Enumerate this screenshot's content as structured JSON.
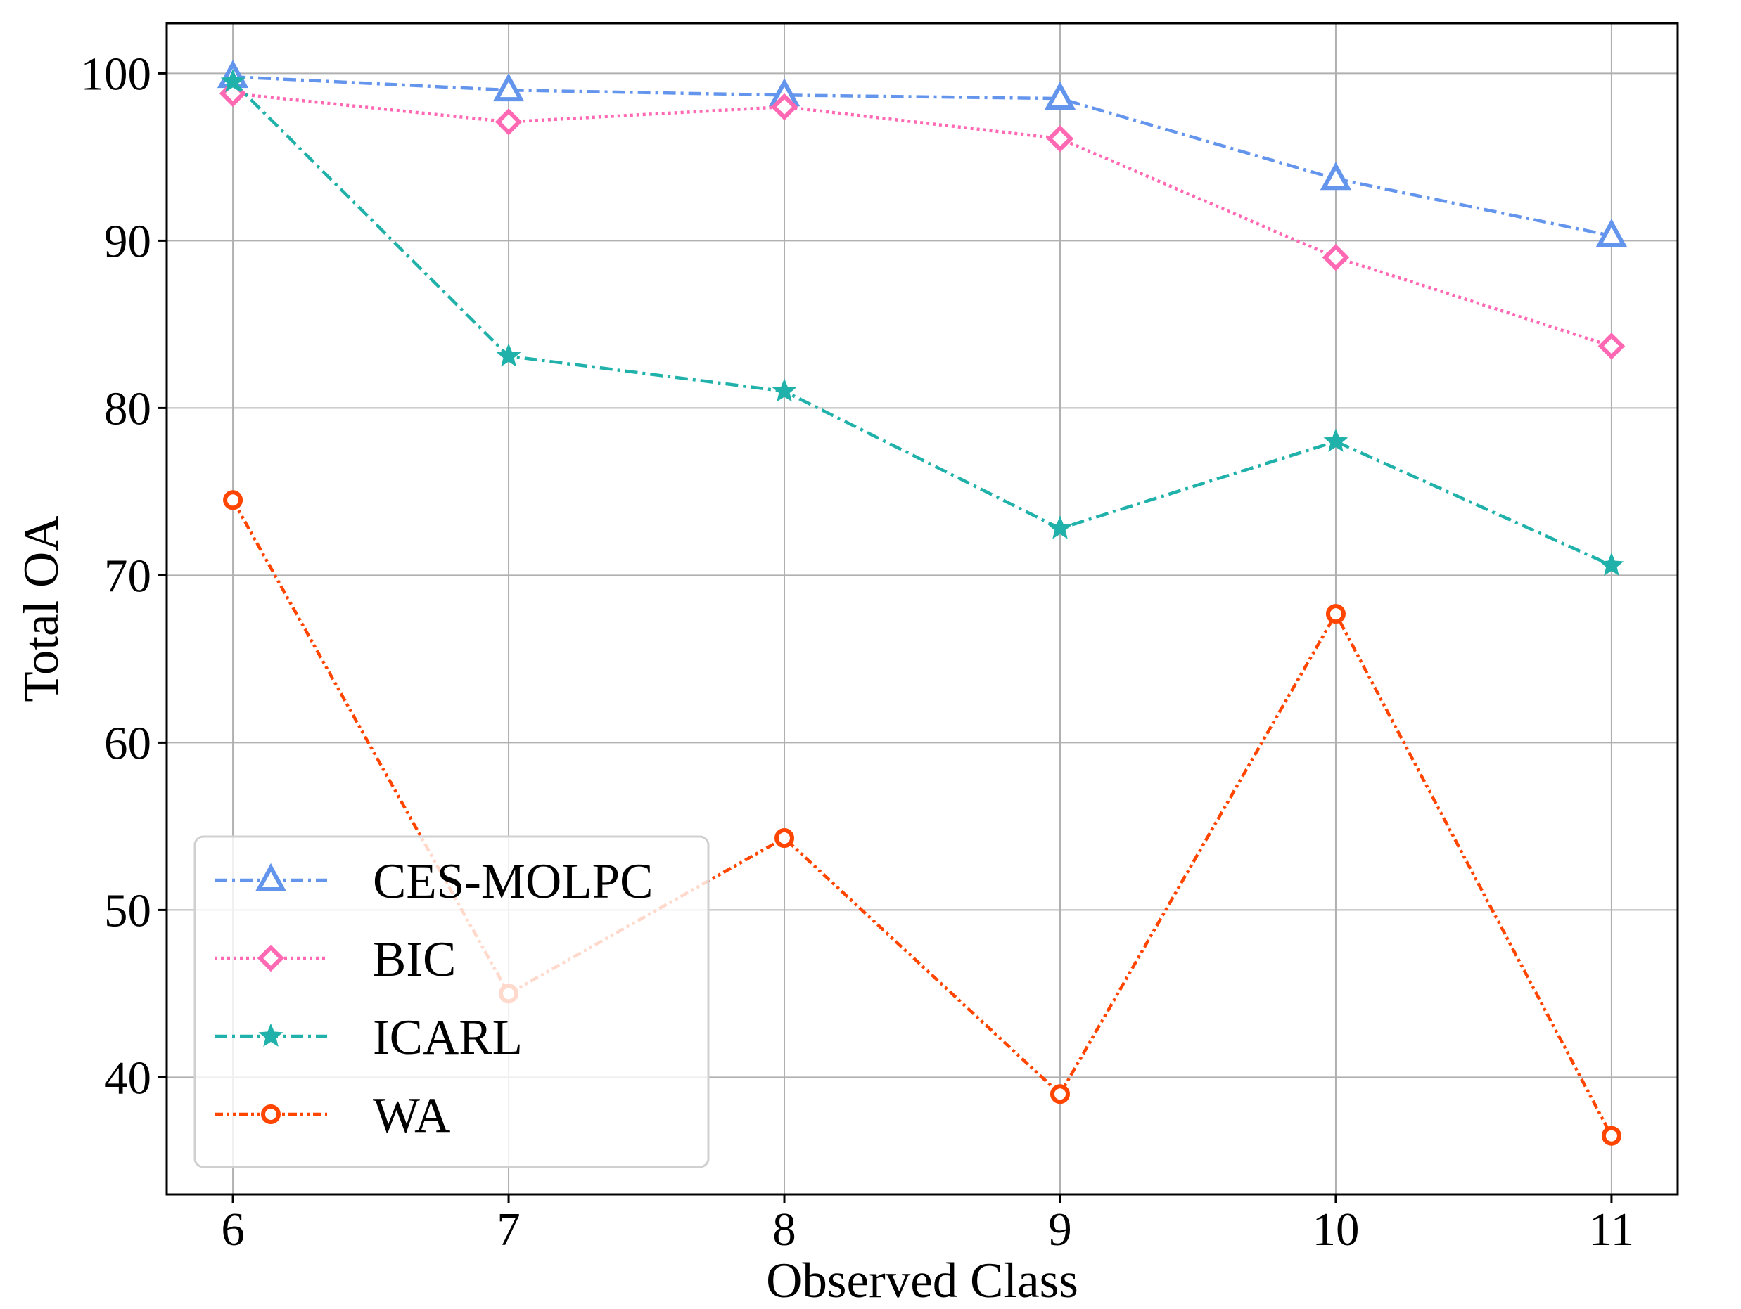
{
  "chart_data": {
    "type": "line",
    "title": "",
    "xlabel": "Observed Class",
    "ylabel": "Total OA",
    "x": [
      6,
      7,
      8,
      9,
      10,
      11
    ],
    "x_tick_labels": [
      "6",
      "7",
      "8",
      "9",
      "10",
      "11"
    ],
    "xlim": [
      5.76,
      11.24
    ],
    "ylim": [
      33,
      103
    ],
    "y_ticks": [
      40,
      50,
      60,
      70,
      80,
      90,
      100
    ],
    "y_tick_labels": [
      "40",
      "50",
      "60",
      "70",
      "80",
      "90",
      "100"
    ],
    "grid": true,
    "legend_position": "lower-left",
    "series": [
      {
        "name": "CES-MOLPC",
        "marker": "triangle",
        "dash": "dashdot",
        "color": "#6495ED",
        "values": [
          99.8,
          99.0,
          98.7,
          98.5,
          93.7,
          90.3
        ]
      },
      {
        "name": "BIC",
        "marker": "diamond",
        "dash": "dotted",
        "color": "#FF69B4",
        "values": [
          98.8,
          97.1,
          98.0,
          96.1,
          89.0,
          83.7
        ]
      },
      {
        "name": "ICARL",
        "marker": "star",
        "dash": "dashdot",
        "color": "#20B2AA",
        "values": [
          99.5,
          83.1,
          81.0,
          72.8,
          78.0,
          70.6
        ]
      },
      {
        "name": "WA",
        "marker": "circle",
        "dash": "dashdotdot",
        "color": "#FF4500",
        "values": [
          74.5,
          45.0,
          54.3,
          39.0,
          67.7,
          36.5
        ]
      }
    ]
  }
}
